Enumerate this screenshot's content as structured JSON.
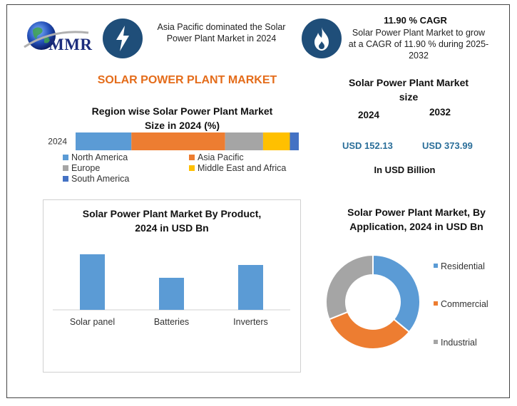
{
  "logo": {
    "name": "MMR"
  },
  "top": {
    "region_text": "Asia Pacific dominated the Solar Power Plant Market in 2024",
    "cagr_title": "11.90 % CAGR",
    "cagr_text": "Solar Power Plant Market to grow at a CAGR of 11.90 % during 2025-2032"
  },
  "main_title": "SOLAR POWER PLANT MARKET",
  "market_size": {
    "title_line1": "Solar Power Plant Market",
    "title_line2": "size",
    "year1": "2024",
    "year2": "2032",
    "value1": "USD 152.13",
    "value2": "USD 373.99",
    "unit": "In USD Billion"
  },
  "colors": {
    "north_america": "#5b9bd5",
    "asia_pacific": "#ed7d31",
    "europe": "#a5a5a5",
    "mea": "#ffc000",
    "south_america": "#4472c4",
    "bar": "#5b9bd5",
    "residential": "#5b9bd5",
    "commercial": "#ed7d31",
    "industrial": "#a5a5a5",
    "icon_bg": "#1f4e79"
  },
  "chart_data": [
    {
      "type": "bar",
      "orientation": "horizontal-stacked",
      "title": "Region wise Solar Power Plant Market Size in 2024 (%)",
      "categories": [
        "2024"
      ],
      "series": [
        {
          "name": "North America",
          "values": [
            25
          ]
        },
        {
          "name": "Asia Pacific",
          "values": [
            42
          ]
        },
        {
          "name": "Europe",
          "values": [
            17
          ]
        },
        {
          "name": "Middle East and Africa",
          "values": [
            12
          ]
        },
        {
          "name": "South America",
          "values": [
            4
          ]
        }
      ],
      "xlim": [
        0,
        100
      ],
      "legend": "bottom"
    },
    {
      "type": "bar",
      "title": "Solar Power Plant Market By Product, 2024 in USD Bn",
      "categories": [
        "Solar panel",
        "Batteries",
        "Inverters"
      ],
      "values": [
        78,
        45,
        63
      ],
      "ylim": [
        0,
        100
      ],
      "grid": false
    },
    {
      "type": "pie",
      "variant": "donut",
      "title": "Solar Power Plant Market, By Application, 2024 in USD Bn",
      "categories": [
        "Residential",
        "Commercial",
        "Industrial"
      ],
      "values": [
        36,
        33,
        31
      ],
      "legend": "right"
    }
  ]
}
